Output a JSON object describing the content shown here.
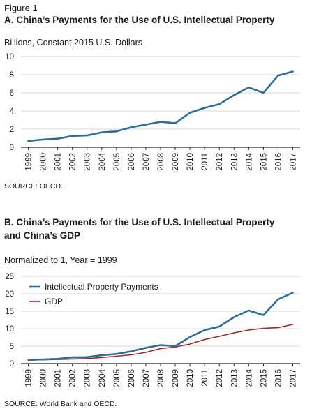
{
  "figure_label": "Figure 1",
  "colors": {
    "ip": "#2a6f97",
    "gdp": "#a3262a",
    "axis": "#222222",
    "grid": "#d8d8d8"
  },
  "chart_data": [
    {
      "type": "line",
      "title": "A. China’s Payments for the Use of U.S. Intellectual Property",
      "subtitle": "Billions, Constant 2015 U.S. Dollars",
      "source": "SOURCE: OECD.",
      "xlabel": "",
      "ylabel": "",
      "ylim": [
        0,
        10
      ],
      "yticks": [
        0,
        2,
        4,
        6,
        8,
        10
      ],
      "grid": "horizontal",
      "x": [
        "1999",
        "2000",
        "2001",
        "2002",
        "2003",
        "2004",
        "2005",
        "2006",
        "2007",
        "2008",
        "2009",
        "2010",
        "2011",
        "2012",
        "2013",
        "2014",
        "2015",
        "2016",
        "2017"
      ],
      "series": [
        {
          "color": "#2a6f97",
          "values": [
            0.7,
            0.85,
            0.95,
            1.25,
            1.3,
            1.65,
            1.75,
            2.2,
            2.5,
            2.8,
            2.65,
            3.8,
            4.35,
            4.75,
            5.75,
            6.6,
            6.0,
            7.9,
            8.35
          ]
        }
      ]
    },
    {
      "type": "line",
      "title": "B. China’s Payments for the Use of U.S. Intellectual Property",
      "title_line2": "and China’s GDP",
      "subtitle": "Normalized to 1, Year = 1999",
      "source": "SOURCE: World Bank and OECD.",
      "xlabel": "",
      "ylabel": "",
      "ylim": [
        0,
        25
      ],
      "yticks": [
        0,
        5,
        10,
        15,
        20,
        25
      ],
      "grid": "horizontal",
      "legend_position": "top-left",
      "x": [
        "1999",
        "2000",
        "2001",
        "2002",
        "2003",
        "2004",
        "2005",
        "2006",
        "2007",
        "2008",
        "2009",
        "2010",
        "2011",
        "2012",
        "2013",
        "2014",
        "2015",
        "2016",
        "2017"
      ],
      "series": [
        {
          "name": "Intellectual Property Payments",
          "color": "#2a6f97",
          "values": [
            1.0,
            1.2,
            1.35,
            1.8,
            1.85,
            2.4,
            2.75,
            3.5,
            4.5,
            5.3,
            5.0,
            7.6,
            9.6,
            10.6,
            13.3,
            15.2,
            13.9,
            18.4,
            20.3
          ]
        },
        {
          "name": "GDP",
          "color": "#a3262a",
          "values": [
            1.0,
            1.08,
            1.18,
            1.3,
            1.45,
            1.75,
            2.1,
            2.5,
            3.2,
            4.3,
            4.75,
            5.6,
            6.9,
            7.8,
            8.8,
            9.6,
            10.1,
            10.3,
            11.2
          ]
        }
      ]
    }
  ]
}
